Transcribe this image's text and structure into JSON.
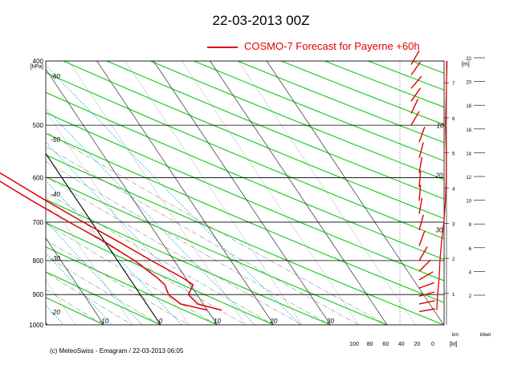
{
  "title": "22-03-2013  00Z",
  "footer": "(c) MeteoSwiss - Emagram  /  22-03-2013  06:05",
  "chart_data": {
    "type": "emagram",
    "legend": [
      {
        "name": "COSMO-7 Forecast for Payerne   +60h",
        "color": "#e00000"
      }
    ],
    "y_axis": {
      "label": "[hPa]",
      "ticks": [
        400,
        500,
        600,
        700,
        800,
        900,
        1000
      ],
      "range": [
        400,
        1000
      ],
      "scale": "log"
    },
    "x_axis": {
      "unit": "°C",
      "ticks": [
        -10,
        0,
        10,
        20,
        30
      ],
      "range": [
        -20,
        38
      ]
    },
    "skew_labels": [
      -60,
      -50,
      -40,
      -30,
      -20
    ],
    "left_labels": [
      {
        "p": 425,
        "text": "-60"
      },
      {
        "p": 530,
        "text": "-50"
      },
      {
        "p": 640,
        "text": "-40"
      },
      {
        "p": 800,
        "text": "-30"
      },
      {
        "p": 965,
        "text": "-20"
      }
    ],
    "km_axis": {
      "title": "[m]",
      "ticks": [
        1,
        2,
        3,
        4,
        5,
        6,
        7
      ]
    },
    "kfeet_axis": {
      "ticks": [
        2,
        4,
        6,
        8,
        10,
        12,
        14,
        16,
        18,
        20,
        22
      ]
    },
    "bottom_km_label": "km",
    "bottom_kfeet_label": "kfeet",
    "bottom_kt_label": "[kt]",
    "wind_speed_ticks": [
      100,
      80,
      60,
      40,
      20,
      0
    ],
    "profile_labels": [
      "10",
      "20",
      "30"
    ],
    "temperature": [
      {
        "p": 950,
        "t": 12.5
      },
      {
        "p": 930,
        "t": 9.0
      },
      {
        "p": 900,
        "t": 8.5
      },
      {
        "p": 870,
        "t": 10.5
      },
      {
        "p": 850,
        "t": 9.5
      },
      {
        "p": 800,
        "t": 6.0
      },
      {
        "p": 750,
        "t": 2.5
      },
      {
        "p": 700,
        "t": -1.5
      },
      {
        "p": 650,
        "t": -5.5
      },
      {
        "p": 600,
        "t": -9.5
      },
      {
        "p": 550,
        "t": -14.0
      },
      {
        "p": 500,
        "t": -19.0
      },
      {
        "p": 450,
        "t": -25.0
      },
      {
        "p": 420,
        "t": -29.0
      },
      {
        "p": 400,
        "t": -31.0
      }
    ],
    "dewpoint": [
      {
        "p": 950,
        "t": 10.0
      },
      {
        "p": 930,
        "t": 6.0
      },
      {
        "p": 900,
        "t": 5.0
      },
      {
        "p": 870,
        "t": 5.5
      },
      {
        "p": 850,
        "t": 5.0
      },
      {
        "p": 800,
        "t": 3.0
      },
      {
        "p": 750,
        "t": 0.0
      },
      {
        "p": 700,
        "t": -4.0
      },
      {
        "p": 650,
        "t": -8.0
      },
      {
        "p": 600,
        "t": -12.0
      },
      {
        "p": 550,
        "t": -17.0
      },
      {
        "p": 500,
        "t": -23.0
      },
      {
        "p": 450,
        "t": -29.0
      },
      {
        "p": 420,
        "t": -33.0
      },
      {
        "p": 400,
        "t": -35.0
      }
    ],
    "wind_speed_profile": [
      {
        "p": 950,
        "kt": 5
      },
      {
        "p": 900,
        "kt": 6
      },
      {
        "p": 850,
        "kt": 8
      },
      {
        "p": 800,
        "kt": 9
      },
      {
        "p": 750,
        "kt": 11
      },
      {
        "p": 700,
        "kt": 14
      },
      {
        "p": 650,
        "kt": 16
      },
      {
        "p": 600,
        "kt": 17
      },
      {
        "p": 550,
        "kt": 17
      },
      {
        "p": 500,
        "kt": 16
      },
      {
        "p": 450,
        "kt": 17
      },
      {
        "p": 400,
        "kt": 18
      }
    ]
  }
}
